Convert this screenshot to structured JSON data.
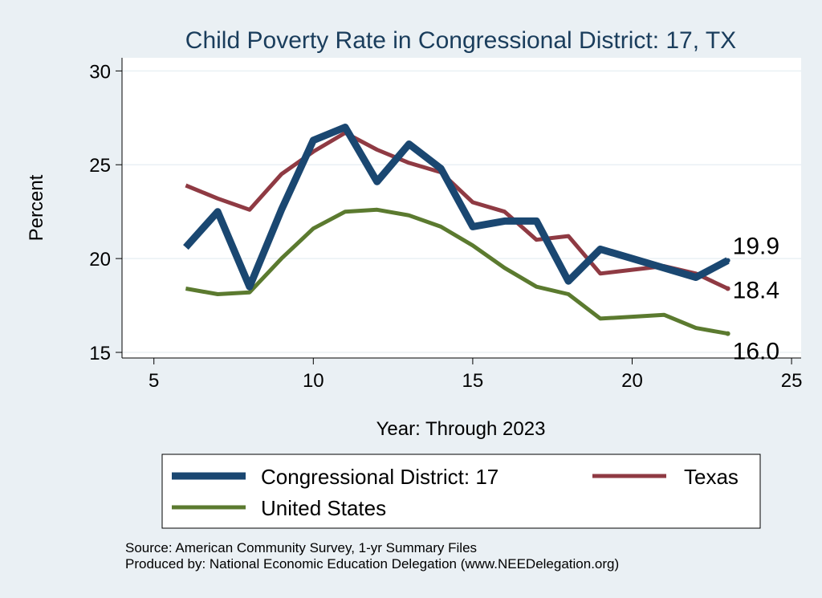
{
  "chart_data": {
    "type": "line",
    "title": "Child Poverty Rate in Congressional District:  17, TX",
    "xlabel": "Year: Through 2023",
    "ylabel": "Percent",
    "xlim": [
      4,
      25.3
    ],
    "ylim": [
      14.7,
      30.7
    ],
    "x_ticks": [
      5,
      10,
      15,
      20,
      25
    ],
    "y_ticks": [
      15,
      20,
      25,
      30
    ],
    "grid": true,
    "legend_position": "bottom",
    "series": [
      {
        "name": "Congressional District:  17",
        "color": "#1a4771",
        "x": [
          6,
          7,
          8,
          9,
          10,
          11,
          12,
          13,
          14,
          15,
          16,
          17,
          18,
          19,
          20,
          21,
          22,
          23
        ],
        "values": [
          20.6,
          22.5,
          18.5,
          22.6,
          26.3,
          27.0,
          24.1,
          26.1,
          24.8,
          21.7,
          22.0,
          22.0,
          18.8,
          20.5,
          20.0,
          19.5,
          19.0,
          19.9
        ],
        "end_label": "19.9"
      },
      {
        "name": "Texas",
        "color": "#8f3a43",
        "x": [
          6,
          7,
          8,
          9,
          10,
          11,
          12,
          13,
          14,
          15,
          16,
          17,
          18,
          19,
          20,
          21,
          22,
          23
        ],
        "values": [
          23.9,
          23.2,
          22.6,
          24.5,
          25.7,
          26.7,
          25.8,
          25.1,
          24.6,
          23.0,
          22.5,
          21.0,
          21.2,
          19.2,
          19.4,
          19.6,
          19.2,
          18.4
        ],
        "end_label": "18.4"
      },
      {
        "name": "United States",
        "color": "#5b7a2f",
        "x": [
          6,
          7,
          8,
          9,
          10,
          11,
          12,
          13,
          14,
          15,
          16,
          17,
          18,
          19,
          20,
          21,
          22,
          23
        ],
        "values": [
          18.4,
          18.1,
          18.2,
          20.0,
          21.6,
          22.5,
          22.6,
          22.3,
          21.7,
          20.7,
          19.5,
          18.5,
          18.1,
          16.8,
          16.9,
          17.0,
          16.3,
          16.0
        ],
        "end_label": "16.0"
      }
    ]
  },
  "source_line1": "Source: American Community Survey, 1-yr Summary Files",
  "source_line2": "Produced by: National Economic Education Delegation (www.NEEDelegation.org)"
}
